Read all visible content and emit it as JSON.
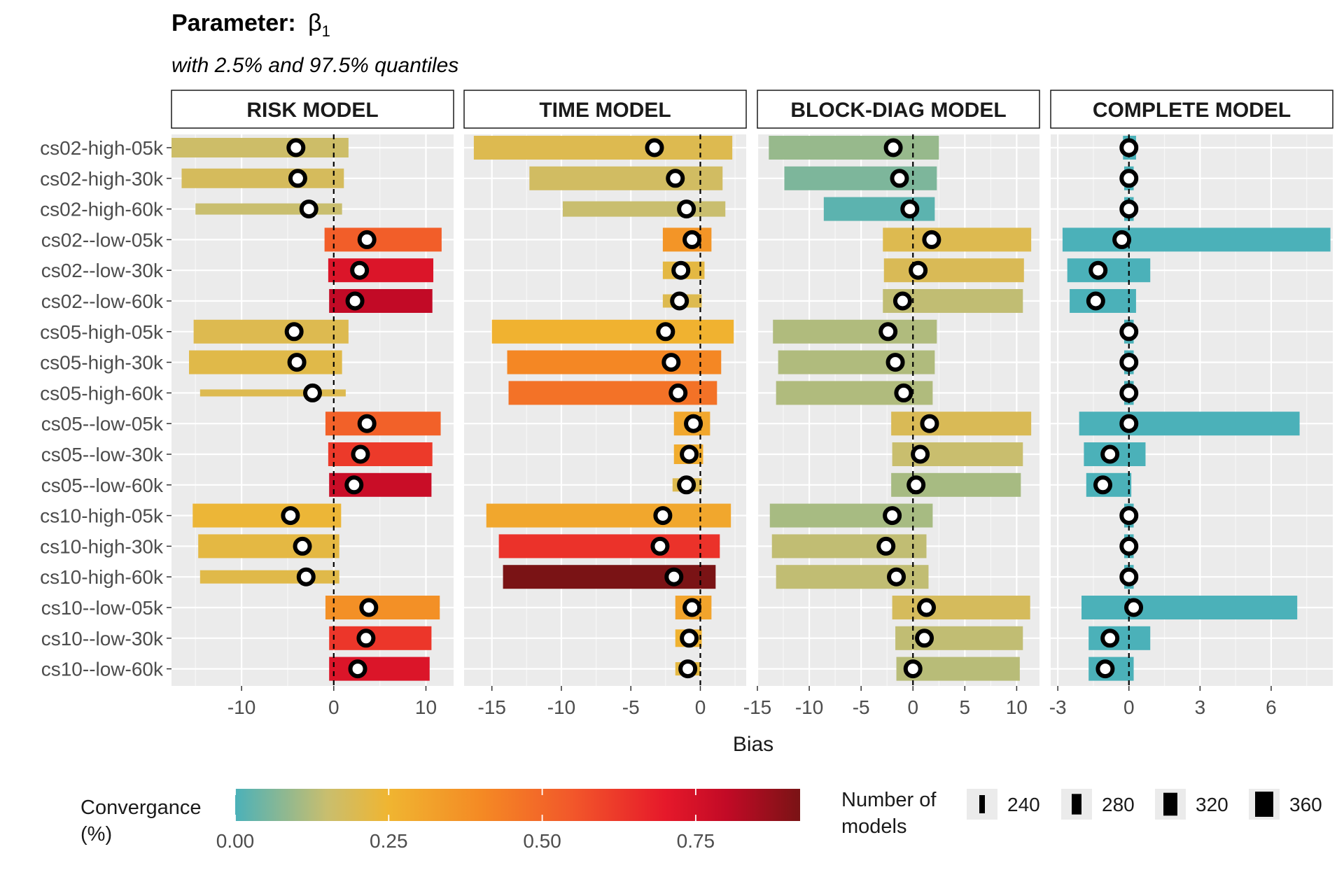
{
  "title_prefix": "Parameter:",
  "title_symbol": "β",
  "title_subscript": "1",
  "subtitle": "with 2.5% and 97.5% quantiles",
  "chart_data": {
    "type": "forest",
    "x_label": "Bias",
    "row_labels": [
      "cs02-high-05k",
      "cs02-high-30k",
      "cs02-high-60k",
      "cs02--low-05k",
      "cs02--low-30k",
      "cs02--low-60k",
      "cs05-high-05k",
      "cs05-high-30k",
      "cs05-high-60k",
      "cs05--low-05k",
      "cs05--low-30k",
      "cs05--low-60k",
      "cs10-high-05k",
      "cs10-high-30k",
      "cs10-high-60k",
      "cs10--low-05k",
      "cs10--low-30k",
      "cs10--low-60k"
    ],
    "reference_line": 0,
    "panels": [
      {
        "name": "RISK MODEL",
        "xlim": [
          -17.6,
          13
        ],
        "ticks": [
          -10,
          0,
          10
        ],
        "rows": [
          {
            "lo": -17.6,
            "hi": 1.6,
            "est": -4.1,
            "conv": 0.16,
            "n": 300
          },
          {
            "lo": -16.5,
            "hi": 1.1,
            "est": -3.9,
            "conv": 0.18,
            "n": 300
          },
          {
            "lo": -15.0,
            "hi": 0.9,
            "est": -2.7,
            "conv": 0.15,
            "n": 220
          },
          {
            "lo": -1.0,
            "hi": 11.7,
            "est": 3.6,
            "conv": 0.53,
            "n": 340
          },
          {
            "lo": -0.6,
            "hi": 10.8,
            "est": 2.8,
            "conv": 0.73,
            "n": 340
          },
          {
            "lo": -0.5,
            "hi": 10.7,
            "est": 2.3,
            "conv": 0.8,
            "n": 340
          },
          {
            "lo": -15.2,
            "hi": 1.6,
            "est": -4.3,
            "conv": 0.2,
            "n": 340
          },
          {
            "lo": -15.7,
            "hi": 0.9,
            "est": -4.0,
            "conv": 0.21,
            "n": 340
          },
          {
            "lo": -14.5,
            "hi": 1.3,
            "est": -2.3,
            "conv": 0.2,
            "n": 180
          },
          {
            "lo": -0.9,
            "hi": 11.6,
            "est": 3.6,
            "conv": 0.52,
            "n": 340
          },
          {
            "lo": -0.6,
            "hi": 10.7,
            "est": 2.9,
            "conv": 0.62,
            "n": 340
          },
          {
            "lo": -0.5,
            "hi": 10.6,
            "est": 2.2,
            "conv": 0.78,
            "n": 340
          },
          {
            "lo": -15.3,
            "hi": 0.8,
            "est": -4.7,
            "conv": 0.24,
            "n": 340
          },
          {
            "lo": -14.7,
            "hi": 0.6,
            "est": -3.4,
            "conv": 0.22,
            "n": 340
          },
          {
            "lo": -14.5,
            "hi": 0.6,
            "est": -3.0,
            "conv": 0.21,
            "n": 240
          },
          {
            "lo": -0.9,
            "hi": 11.5,
            "est": 3.8,
            "conv": 0.38,
            "n": 340
          },
          {
            "lo": -0.5,
            "hi": 10.6,
            "est": 3.5,
            "conv": 0.63,
            "n": 340
          },
          {
            "lo": -0.5,
            "hi": 10.4,
            "est": 2.6,
            "conv": 0.73,
            "n": 340
          }
        ]
      },
      {
        "name": "TIME MODEL",
        "xlim": [
          -17,
          3.3
        ],
        "ticks": [
          -15,
          -10,
          -5,
          0
        ],
        "rows": [
          {
            "lo": -16.3,
            "hi": 2.3,
            "est": -3.3,
            "conv": 0.2,
            "n": 340
          },
          {
            "lo": -12.3,
            "hi": 1.6,
            "est": -1.8,
            "conv": 0.17,
            "n": 340
          },
          {
            "lo": -9.9,
            "hi": 1.8,
            "est": -1.0,
            "conv": 0.15,
            "n": 260
          },
          {
            "lo": -2.7,
            "hi": 0.8,
            "est": -0.6,
            "conv": 0.36,
            "n": 340
          },
          {
            "lo": -2.7,
            "hi": 0.3,
            "est": -1.4,
            "conv": 0.22,
            "n": 280
          },
          {
            "lo": -2.7,
            "hi": 0.1,
            "est": -1.5,
            "conv": 0.2,
            "n": 240
          },
          {
            "lo": -15.0,
            "hi": 2.4,
            "est": -2.5,
            "conv": 0.26,
            "n": 340
          },
          {
            "lo": -13.9,
            "hi": 1.5,
            "est": -2.1,
            "conv": 0.41,
            "n": 340
          },
          {
            "lo": -13.8,
            "hi": 1.2,
            "est": -1.6,
            "conv": 0.47,
            "n": 340
          },
          {
            "lo": -1.9,
            "hi": 0.7,
            "est": -0.5,
            "conv": 0.3,
            "n": 340
          },
          {
            "lo": -1.9,
            "hi": 0.2,
            "est": -0.8,
            "conv": 0.28,
            "n": 300
          },
          {
            "lo": -2.0,
            "hi": 0.1,
            "est": -1.0,
            "conv": 0.2,
            "n": 240
          },
          {
            "lo": -15.4,
            "hi": 2.2,
            "est": -2.7,
            "conv": 0.3,
            "n": 340
          },
          {
            "lo": -14.5,
            "hi": 1.4,
            "est": -2.9,
            "conv": 0.64,
            "n": 340
          },
          {
            "lo": -14.2,
            "hi": 1.1,
            "est": -1.9,
            "conv": 0.92,
            "n": 340
          },
          {
            "lo": -1.8,
            "hi": 0.8,
            "est": -0.6,
            "conv": 0.31,
            "n": 340
          },
          {
            "lo": -1.8,
            "hi": 0.1,
            "est": -0.8,
            "conv": 0.26,
            "n": 280
          },
          {
            "lo": -1.8,
            "hi": 0.0,
            "est": -0.9,
            "conv": 0.22,
            "n": 240
          }
        ]
      },
      {
        "name": "BLOCK-DIAG MODEL",
        "xlim": [
          -15,
          12.2
        ],
        "ticks": [
          -15,
          -10,
          -5,
          0,
          5,
          10
        ],
        "rows": [
          {
            "lo": -13.9,
            "hi": 2.5,
            "est": -1.9,
            "conv": 0.09,
            "n": 340
          },
          {
            "lo": -12.4,
            "hi": 2.3,
            "est": -1.3,
            "conv": 0.06,
            "n": 340
          },
          {
            "lo": -8.6,
            "hi": 2.1,
            "est": -0.3,
            "conv": 0.02,
            "n": 340
          },
          {
            "lo": -2.9,
            "hi": 11.4,
            "est": 1.8,
            "conv": 0.2,
            "n": 340
          },
          {
            "lo": -2.8,
            "hi": 10.7,
            "est": 0.5,
            "conv": 0.19,
            "n": 340
          },
          {
            "lo": -2.9,
            "hi": 10.6,
            "est": -1.0,
            "conv": 0.14,
            "n": 340
          },
          {
            "lo": -13.5,
            "hi": 2.3,
            "est": -2.4,
            "conv": 0.12,
            "n": 340
          },
          {
            "lo": -13.0,
            "hi": 2.1,
            "est": -1.7,
            "conv": 0.12,
            "n": 340
          },
          {
            "lo": -13.2,
            "hi": 1.9,
            "est": -0.9,
            "conv": 0.12,
            "n": 340
          },
          {
            "lo": -2.1,
            "hi": 11.4,
            "est": 1.6,
            "conv": 0.19,
            "n": 340
          },
          {
            "lo": -2.0,
            "hi": 10.6,
            "est": 0.7,
            "conv": 0.15,
            "n": 340
          },
          {
            "lo": -2.1,
            "hi": 10.4,
            "est": 0.3,
            "conv": 0.11,
            "n": 340
          },
          {
            "lo": -13.8,
            "hi": 1.9,
            "est": -2.0,
            "conv": 0.11,
            "n": 340
          },
          {
            "lo": -13.6,
            "hi": 1.3,
            "est": -2.6,
            "conv": 0.14,
            "n": 340
          },
          {
            "lo": -13.2,
            "hi": 1.5,
            "est": -1.6,
            "conv": 0.14,
            "n": 340
          },
          {
            "lo": -2.0,
            "hi": 11.3,
            "est": 1.3,
            "conv": 0.18,
            "n": 340
          },
          {
            "lo": -1.7,
            "hi": 10.6,
            "est": 1.1,
            "conv": 0.14,
            "n": 340
          },
          {
            "lo": -1.6,
            "hi": 10.3,
            "est": 0.0,
            "conv": 0.13,
            "n": 340
          }
        ]
      },
      {
        "name": "COMPLETE MODEL",
        "xlim": [
          -3.3,
          8.6
        ],
        "ticks": [
          -3,
          0,
          3,
          6
        ],
        "rows": [
          {
            "lo": -0.25,
            "hi": 0.3,
            "est": 0.0,
            "conv": 0.0,
            "n": 340
          },
          {
            "lo": -0.2,
            "hi": 0.2,
            "est": 0.0,
            "conv": 0.0,
            "n": 340
          },
          {
            "lo": -0.2,
            "hi": 0.2,
            "est": 0.0,
            "conv": 0.0,
            "n": 340
          },
          {
            "lo": -2.8,
            "hi": 8.5,
            "est": -0.3,
            "conv": 0.0,
            "n": 340
          },
          {
            "lo": -2.6,
            "hi": 0.9,
            "est": -1.3,
            "conv": 0.0,
            "n": 340
          },
          {
            "lo": -2.5,
            "hi": 0.3,
            "est": -1.4,
            "conv": 0.0,
            "n": 340
          },
          {
            "lo": -0.2,
            "hi": 0.2,
            "est": 0.0,
            "conv": 0.0,
            "n": 340
          },
          {
            "lo": -0.2,
            "hi": 0.2,
            "est": 0.0,
            "conv": 0.0,
            "n": 340
          },
          {
            "lo": -0.2,
            "hi": 0.2,
            "est": 0.0,
            "conv": 0.0,
            "n": 340
          },
          {
            "lo": -2.1,
            "hi": 7.2,
            "est": 0.0,
            "conv": 0.0,
            "n": 340
          },
          {
            "lo": -1.9,
            "hi": 0.7,
            "est": -0.8,
            "conv": 0.0,
            "n": 340
          },
          {
            "lo": -1.8,
            "hi": 0.1,
            "est": -1.1,
            "conv": 0.0,
            "n": 340
          },
          {
            "lo": -0.2,
            "hi": 0.2,
            "est": 0.0,
            "conv": 0.0,
            "n": 340
          },
          {
            "lo": -0.2,
            "hi": 0.2,
            "est": 0.0,
            "conv": 0.0,
            "n": 340
          },
          {
            "lo": -0.2,
            "hi": 0.2,
            "est": 0.0,
            "conv": 0.0,
            "n": 340
          },
          {
            "lo": -2.0,
            "hi": 7.1,
            "est": 0.2,
            "conv": 0.0,
            "n": 340
          },
          {
            "lo": -1.7,
            "hi": 0.9,
            "est": -0.8,
            "conv": 0.0,
            "n": 340
          },
          {
            "lo": -1.7,
            "hi": 0.2,
            "est": -1.0,
            "conv": 0.0,
            "n": 340
          }
        ]
      }
    ],
    "colorbar": {
      "title_line1": "Convergance",
      "title_line2": "(%)",
      "min": 0,
      "max": 0.92,
      "ticks": [
        "0.00",
        "0.25",
        "0.50",
        "0.75"
      ],
      "tick_values": [
        0,
        0.25,
        0.5,
        0.75
      ],
      "stops": [
        {
          "v": 0.0,
          "color": "#4bb1b9"
        },
        {
          "v": 0.15,
          "color": "#c9be6e"
        },
        {
          "v": 0.25,
          "color": "#f0b531"
        },
        {
          "v": 0.4,
          "color": "#f48a24"
        },
        {
          "v": 0.55,
          "color": "#f2572a"
        },
        {
          "v": 0.7,
          "color": "#e6192a"
        },
        {
          "v": 0.8,
          "color": "#c20a26"
        },
        {
          "v": 0.92,
          "color": "#7a1315"
        }
      ]
    },
    "size_legend": {
      "title_line1": "Number of",
      "title_line2": "models",
      "items": [
        "240",
        "280",
        "320",
        "360"
      ],
      "values": [
        240,
        280,
        320,
        360
      ]
    }
  }
}
